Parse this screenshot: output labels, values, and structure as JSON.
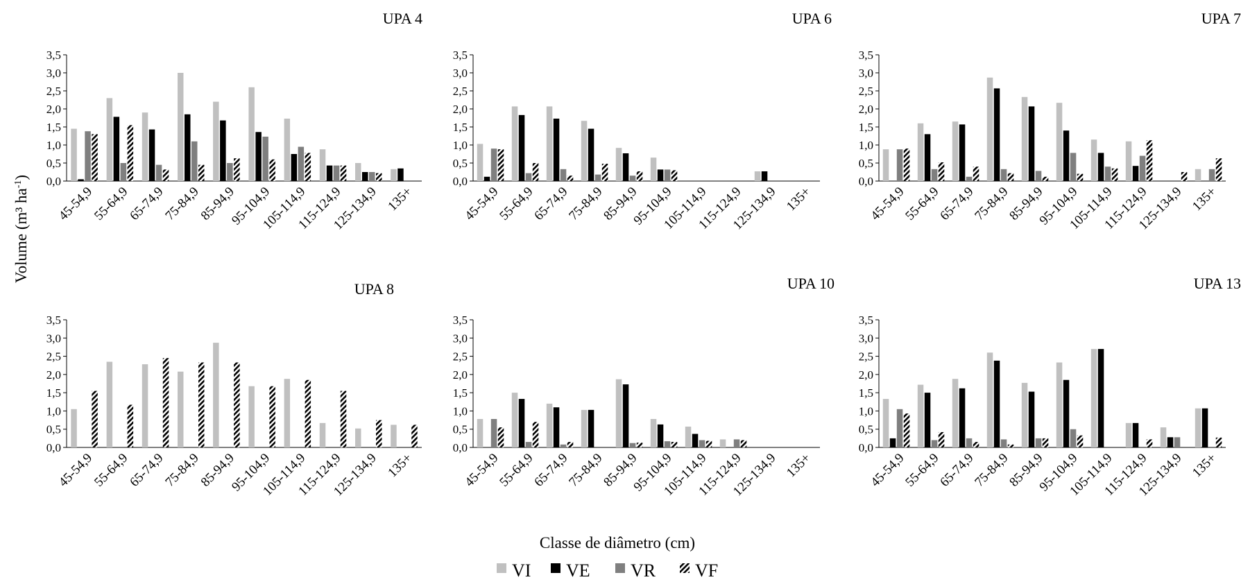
{
  "figure": {
    "ylabel_main": "Volume (m³ ha",
    "ylabel_sup": "-1",
    "ylabel_close": ")",
    "xlabel": "Classe de diâmetro (cm)"
  },
  "legend": [
    {
      "name": "VI",
      "color": "#c0c0c0",
      "pattern": "solid"
    },
    {
      "name": "VE",
      "color": "#000000",
      "pattern": "solid"
    },
    {
      "name": "VR",
      "color": "#7f7f7f",
      "pattern": "solid"
    },
    {
      "name": "VF",
      "color": "#000000",
      "pattern": "hatch"
    }
  ],
  "chart_data": [
    {
      "type": "bar",
      "title": "UPA 4",
      "categories": [
        "45-54,9",
        "55-64,9",
        "65-74,9",
        "75-84,9",
        "85-94,9",
        "95-104,9",
        "105-114,9",
        "115-124,9",
        "125-134,9",
        "135+"
      ],
      "ylim": [
        0,
        3.5
      ],
      "yticks": [
        "0,0",
        "0,5",
        "1,0",
        "1,5",
        "2,0",
        "2,5",
        "3,0",
        "3,5"
      ],
      "series": [
        {
          "name": "VI",
          "values": [
            1.45,
            2.3,
            1.9,
            3.0,
            2.2,
            2.6,
            1.73,
            0.88,
            0.5,
            0.33
          ]
        },
        {
          "name": "VE",
          "values": [
            0.05,
            1.78,
            1.43,
            1.85,
            1.68,
            1.36,
            0.75,
            0.43,
            0.25,
            0.35
          ]
        },
        {
          "name": "VR",
          "values": [
            1.38,
            0.5,
            0.45,
            1.1,
            0.5,
            1.23,
            0.95,
            0.43,
            0.25,
            0.0
          ]
        },
        {
          "name": "VF",
          "values": [
            1.3,
            1.55,
            0.32,
            0.45,
            0.63,
            0.6,
            0.78,
            0.43,
            0.22,
            0.0
          ]
        }
      ]
    },
    {
      "type": "bar",
      "title": "UPA 6",
      "categories": [
        "45-54,9",
        "55-64,9",
        "65-74,9",
        "75-84,9",
        "85-94,9",
        "95-104,9",
        "105-114,9",
        "115-124,9",
        "125-134,9",
        "135+"
      ],
      "ylim": [
        0,
        3.5
      ],
      "yticks": [
        "0,0",
        "0,5",
        "1,0",
        "1,5",
        "2,0",
        "2,5",
        "3,0",
        "3,5"
      ],
      "series": [
        {
          "name": "VI",
          "values": [
            1.03,
            2.07,
            2.07,
            1.67,
            0.92,
            0.65,
            0.0,
            0.0,
            0.27,
            0.0
          ]
        },
        {
          "name": "VE",
          "values": [
            0.12,
            1.83,
            1.73,
            1.45,
            0.77,
            0.32,
            0.0,
            0.0,
            0.27,
            0.0
          ]
        },
        {
          "name": "VR",
          "values": [
            0.9,
            0.22,
            0.33,
            0.18,
            0.15,
            0.32,
            0.0,
            0.0,
            0.0,
            0.0
          ]
        },
        {
          "name": "VF",
          "values": [
            0.88,
            0.5,
            0.15,
            0.48,
            0.27,
            0.3,
            0.0,
            0.0,
            0.0,
            0.0
          ]
        }
      ]
    },
    {
      "type": "bar",
      "title": "UPA 7",
      "categories": [
        "45-54,9",
        "55-64,9",
        "65-74,9",
        "75-84,9",
        "85-94,9",
        "95-104,9",
        "105-114,9",
        "115-124,9",
        "125-134,9",
        "135+"
      ],
      "ylim": [
        0,
        3.5
      ],
      "yticks": [
        "0,0",
        "0,5",
        "1,0",
        "1,5",
        "2,0",
        "2,5",
        "3,0",
        "3,5"
      ],
      "series": [
        {
          "name": "VI",
          "values": [
            0.88,
            1.6,
            1.65,
            2.87,
            2.33,
            2.17,
            1.15,
            1.1,
            0.0,
            0.33
          ]
        },
        {
          "name": "VE",
          "values": [
            0.0,
            1.3,
            1.57,
            2.57,
            2.07,
            1.4,
            0.78,
            0.42,
            0.0,
            0.0
          ]
        },
        {
          "name": "VR",
          "values": [
            0.88,
            0.33,
            0.12,
            0.33,
            0.28,
            0.78,
            0.4,
            0.7,
            0.0,
            0.33
          ]
        },
        {
          "name": "VF",
          "values": [
            0.9,
            0.52,
            0.4,
            0.22,
            0.12,
            0.2,
            0.35,
            1.13,
            0.25,
            0.63
          ]
        }
      ]
    },
    {
      "type": "bar",
      "title": "UPA 8",
      "categories": [
        "45-54,9",
        "55-64,9",
        "65-74,9",
        "75-84,9",
        "85-94,9",
        "95-104,9",
        "105-114,9",
        "115-124,9",
        "125-134,9",
        "135+"
      ],
      "ylim": [
        0,
        3.5
      ],
      "yticks": [
        "0,0",
        "0,5",
        "1,0",
        "1,5",
        "2,0",
        "2,5",
        "3,0",
        "3,5"
      ],
      "series": [
        {
          "name": "VI",
          "values": [
            1.05,
            2.35,
            2.28,
            2.08,
            2.87,
            1.68,
            1.88,
            0.67,
            0.52,
            0.62
          ]
        },
        {
          "name": "VE",
          "values": [
            0.0,
            0.0,
            0.0,
            0.0,
            0.0,
            0.0,
            0.0,
            0.0,
            0.0,
            0.0
          ]
        },
        {
          "name": "VR",
          "values": [
            0.0,
            0.0,
            0.0,
            0.0,
            0.0,
            0.0,
            0.0,
            0.0,
            0.0,
            0.0
          ]
        },
        {
          "name": "VF",
          "values": [
            1.55,
            1.17,
            2.45,
            2.33,
            2.33,
            1.68,
            1.85,
            1.55,
            0.75,
            0.62
          ]
        }
      ]
    },
    {
      "type": "bar",
      "title": "UPA 10",
      "categories": [
        "45-54,9",
        "55-64,9",
        "65-74,9",
        "75-84,9",
        "85-94,9",
        "95-104,9",
        "105-114,9",
        "115-124,9",
        "125-134,9",
        "135+"
      ],
      "ylim": [
        0,
        3.5
      ],
      "yticks": [
        "0,0",
        "0,5",
        "1,0",
        "1,5",
        "2,0",
        "2,5",
        "3,0",
        "3,5"
      ],
      "series": [
        {
          "name": "VI",
          "values": [
            0.78,
            1.5,
            1.2,
            1.03,
            1.87,
            0.78,
            0.57,
            0.22,
            0.0,
            0.0
          ]
        },
        {
          "name": "VE",
          "values": [
            0.0,
            1.33,
            1.1,
            1.03,
            1.73,
            0.63,
            0.37,
            0.0,
            0.0,
            0.0
          ]
        },
        {
          "name": "VR",
          "values": [
            0.78,
            0.15,
            0.08,
            0.0,
            0.12,
            0.17,
            0.2,
            0.22,
            0.0,
            0.0
          ]
        },
        {
          "name": "VF",
          "values": [
            0.55,
            0.7,
            0.15,
            0.0,
            0.13,
            0.15,
            0.18,
            0.2,
            0.0,
            0.0
          ]
        }
      ]
    },
    {
      "type": "bar",
      "title": "UPA 13",
      "categories": [
        "45-54,9",
        "55-64,9",
        "65-74,9",
        "75-84,9",
        "85-94,9",
        "95-104,9",
        "105-114,9",
        "115-124,9",
        "125-134,9",
        "135+"
      ],
      "ylim": [
        0,
        3.5
      ],
      "yticks": [
        "0,0",
        "0,5",
        "1,0",
        "1,5",
        "2,0",
        "2,5",
        "3,0",
        "3,5"
      ],
      "series": [
        {
          "name": "VI",
          "values": [
            1.33,
            1.72,
            1.88,
            2.6,
            1.77,
            2.33,
            2.7,
            0.67,
            0.55,
            1.07
          ]
        },
        {
          "name": "VE",
          "values": [
            0.25,
            1.5,
            1.62,
            2.38,
            1.53,
            1.85,
            2.7,
            0.67,
            0.28,
            1.07
          ]
        },
        {
          "name": "VR",
          "values": [
            1.05,
            0.2,
            0.25,
            0.22,
            0.25,
            0.5,
            0.0,
            0.0,
            0.28,
            0.0
          ]
        },
        {
          "name": "VF",
          "values": [
            0.93,
            0.42,
            0.15,
            0.08,
            0.25,
            0.33,
            0.0,
            0.22,
            0.0,
            0.27
          ]
        }
      ]
    }
  ]
}
